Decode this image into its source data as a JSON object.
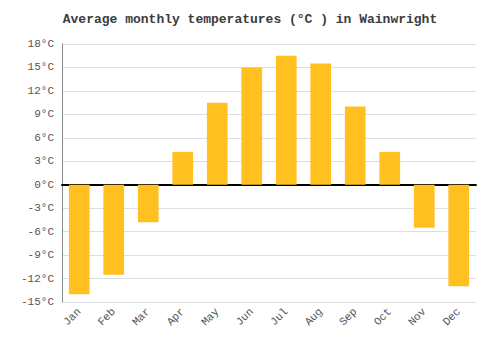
{
  "chart_data": {
    "type": "bar",
    "title": "Average monthly temperatures (°C ) in Wainwright",
    "categories": [
      "Jan",
      "Feb",
      "Mar",
      "Apr",
      "May",
      "Jun",
      "Jul",
      "Aug",
      "Sep",
      "Oct",
      "Nov",
      "Dec"
    ],
    "values": [
      -14,
      -11.5,
      -4.8,
      4.2,
      10.5,
      15.0,
      16.5,
      15.5,
      10.0,
      4.2,
      -5.5,
      -13.0
    ],
    "color": "#FFC020",
    "ylim": [
      -15,
      18
    ],
    "yticks": [
      {
        "value": -15,
        "label": "-15°C"
      },
      {
        "value": -12,
        "label": "-12°C"
      },
      {
        "value": -9,
        "label": "-9°C"
      },
      {
        "value": -6,
        "label": "-6°C"
      },
      {
        "value": -3,
        "label": "-3°C"
      },
      {
        "value": 0,
        "label": "0°C"
      },
      {
        "value": 3,
        "label": "3°C"
      },
      {
        "value": 6,
        "label": "6°C"
      },
      {
        "value": 9,
        "label": "9°C"
      },
      {
        "value": 12,
        "label": "12°C"
      },
      {
        "value": 15,
        "label": "15°C"
      },
      {
        "value": 18,
        "label": "18°C"
      }
    ],
    "grid": true
  }
}
